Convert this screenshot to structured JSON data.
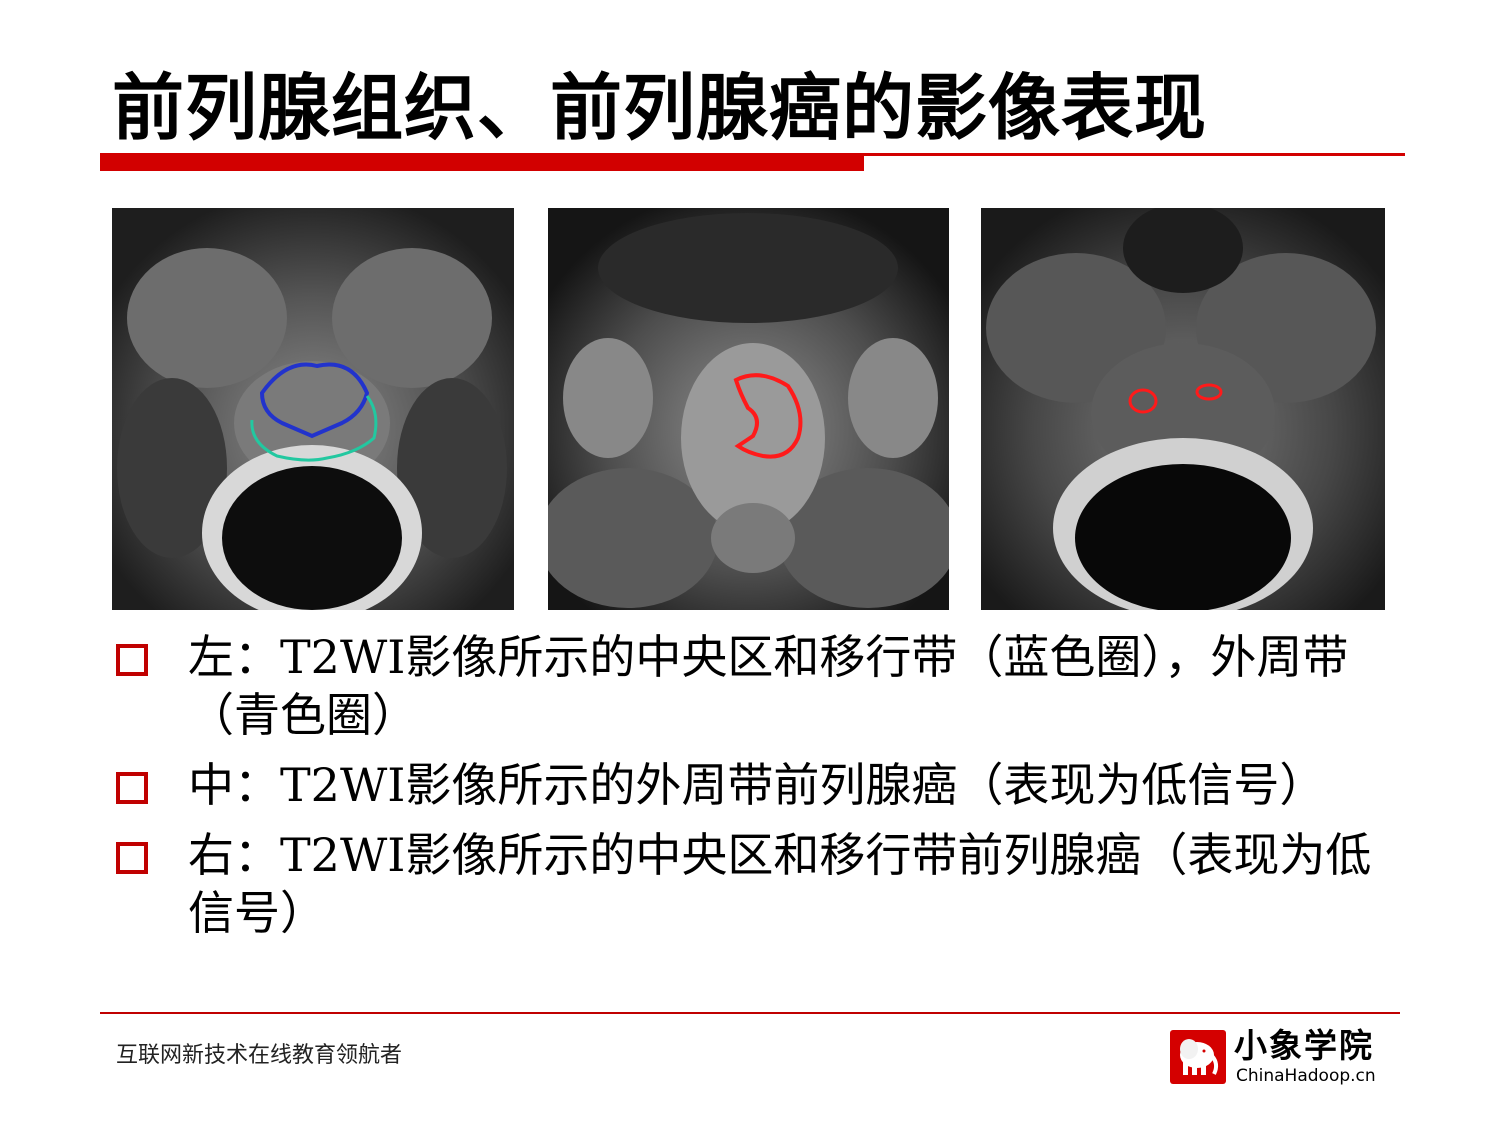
{
  "title": "前列腺组织、前列腺癌的影像表现",
  "colors": {
    "accent": "#c00000",
    "rule": "#d20000",
    "blue_contour": "#2233cc",
    "cyan_contour": "#22c8a0",
    "red_contour": "#ff1a1a"
  },
  "images": [
    {
      "name": "mri-left",
      "icon": "mri-scan-image"
    },
    {
      "name": "mri-center",
      "icon": "mri-scan-image"
    },
    {
      "name": "mri-right",
      "icon": "mri-scan-image"
    }
  ],
  "bullets": [
    {
      "text": "左：T2WI影像所示的中央区和移行带（蓝色圈），外周带（青色圈）"
    },
    {
      "text": "中：T2WI影像所示的外周带前列腺癌（表现为低信号）"
    },
    {
      "text": "右：T2WI影像所示的中央区和移行带前列腺癌（表现为低信号）"
    }
  ],
  "footer": {
    "tagline": "互联网新技术在线教育领航者",
    "logo_name": "小象学院",
    "logo_site": "ChinaHadoop.cn",
    "logo_icon": "elephant-icon"
  }
}
